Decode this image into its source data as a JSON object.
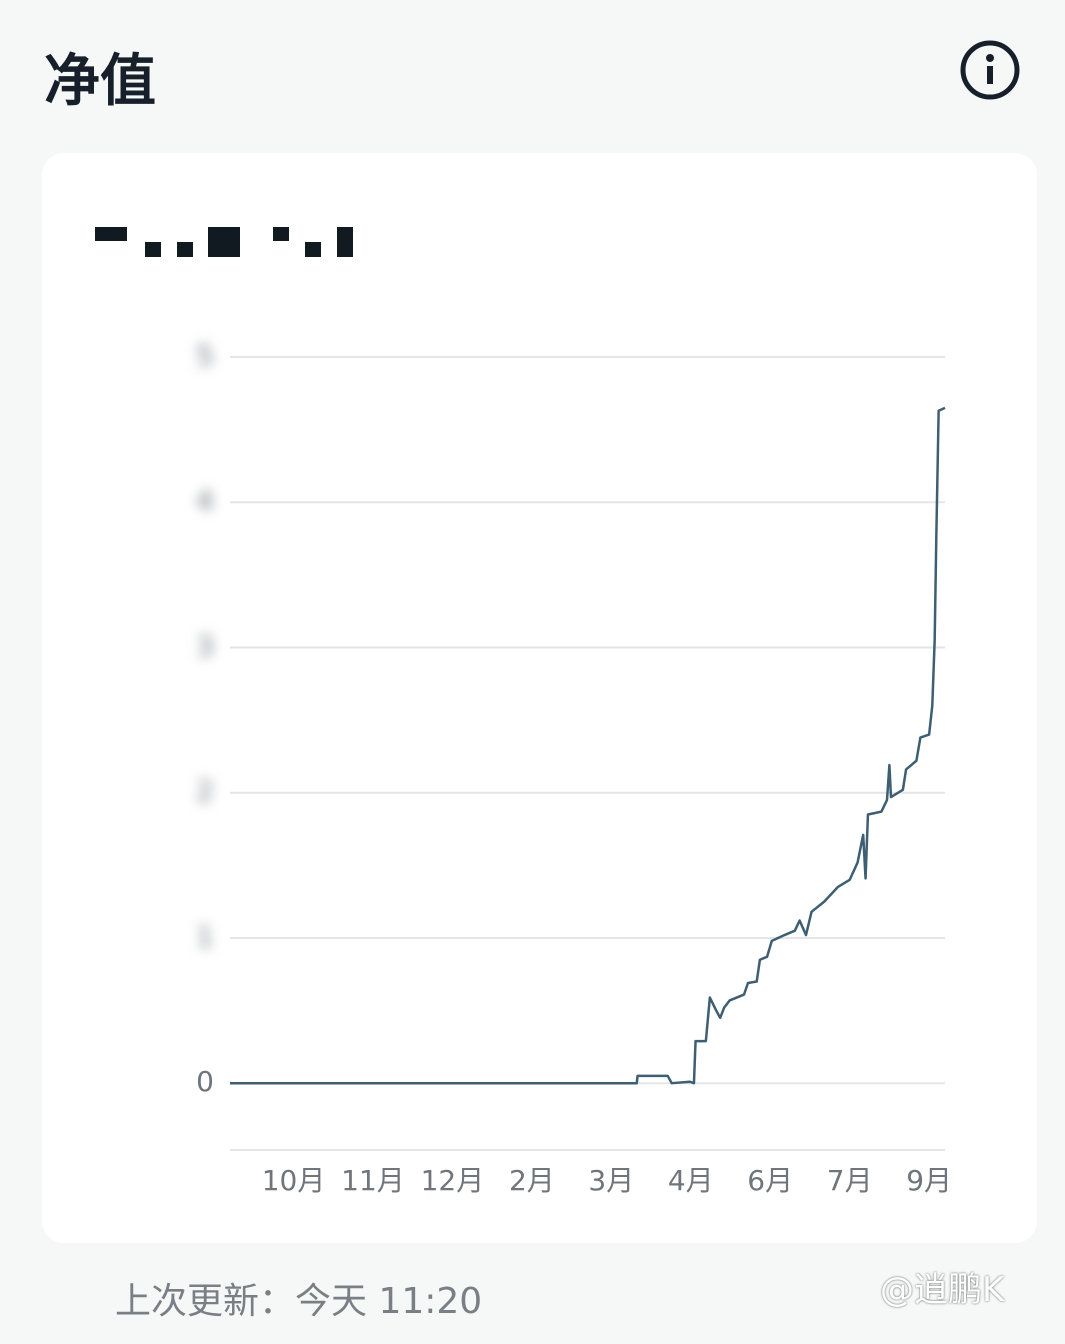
{
  "header": {
    "title": "净值"
  },
  "chart_data": {
    "type": "line",
    "x": [
      0,
      5.12,
      5.13,
      5.51,
      5.56,
      5.79,
      5.84,
      5.86,
      5.99,
      6.04,
      6.12,
      6.17,
      6.22,
      6.29,
      6.47,
      6.52,
      6.63,
      6.67,
      6.76,
      6.82,
      6.98,
      7.11,
      7.17,
      7.25,
      7.32,
      7.48,
      7.65,
      7.8,
      7.9,
      7.97,
      8.0,
      8.03,
      8.2,
      8.27,
      8.3,
      8.32,
      8.47,
      8.51,
      8.64,
      8.69,
      8.8,
      8.84,
      8.87,
      8.89,
      8.92,
      9.0
    ],
    "series": [
      {
        "color": "#3e5f73",
        "values": [
          0,
          0,
          0.05,
          0.05,
          0,
          0.01,
          0,
          0.29,
          0.29,
          0.59,
          0.5,
          0.45,
          0.52,
          0.57,
          0.61,
          0.69,
          0.7,
          0.85,
          0.87,
          0.98,
          1.02,
          1.05,
          1.12,
          1.02,
          1.18,
          1.25,
          1.35,
          1.4,
          1.52,
          1.71,
          1.41,
          1.85,
          1.87,
          1.95,
          2.19,
          1.97,
          2.02,
          2.16,
          2.22,
          2.38,
          2.4,
          2.6,
          3.05,
          3.74,
          4.63,
          4.65
        ]
      }
    ],
    "xlim": [
      0,
      9
    ],
    "xticks": [
      {
        "value": 0.8,
        "label": "10月"
      },
      {
        "value": 1.8,
        "label": "11月"
      },
      {
        "value": 2.8,
        "label": "12月"
      },
      {
        "value": 3.8,
        "label": "2月"
      },
      {
        "value": 4.8,
        "label": "3月"
      },
      {
        "value": 5.8,
        "label": "4月"
      },
      {
        "value": 6.8,
        "label": "6月"
      },
      {
        "value": 7.8,
        "label": "7月"
      },
      {
        "value": 8.8,
        "label": "9月"
      }
    ],
    "ylim": [
      -0.46,
      5
    ],
    "yticks": [
      0,
      1,
      2,
      3,
      4,
      5
    ],
    "grid": true
  },
  "footer": {
    "updated": "上次更新：今天 11:20",
    "watermark": "@逍鹏K"
  }
}
